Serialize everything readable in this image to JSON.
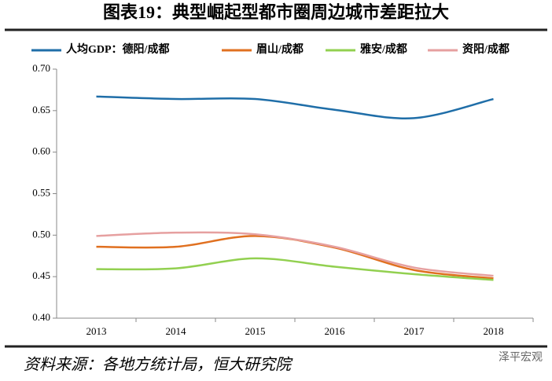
{
  "chart_data": {
    "type": "line",
    "title": "图表19：典型崛起型都市圈周边城市差距拉大",
    "legend_prefix": "人均GDP：",
    "source": "资料来源：各地方统计局，恒大研究院",
    "watermark": "泽平宏观",
    "categories": [
      "2013",
      "2014",
      "2015",
      "2016",
      "2017",
      "2018"
    ],
    "series": [
      {
        "name": "德阳/成都",
        "color": "#1f6ea8",
        "values": [
          0.667,
          0.664,
          0.664,
          0.651,
          0.641,
          0.664
        ]
      },
      {
        "name": "眉山/成都",
        "color": "#e07020",
        "values": [
          0.486,
          0.486,
          0.499,
          0.485,
          0.458,
          0.448
        ]
      },
      {
        "name": "雅安/成都",
        "color": "#92d050",
        "values": [
          0.459,
          0.46,
          0.472,
          0.462,
          0.453,
          0.446
        ]
      },
      {
        "name": "资阳/成都",
        "color": "#e6a0a0",
        "values": [
          0.499,
          0.503,
          0.501,
          0.486,
          0.461,
          0.451
        ]
      }
    ],
    "ylim": [
      0.4,
      0.7
    ],
    "yticks": [
      {
        "value": 0.4,
        "label": "0.40"
      },
      {
        "value": 0.45,
        "label": "0.45"
      },
      {
        "value": 0.5,
        "label": "0.50"
      },
      {
        "value": 0.55,
        "label": "0.55"
      },
      {
        "value": 0.6,
        "label": "0.60"
      },
      {
        "value": 0.65,
        "label": "0.65"
      },
      {
        "value": 0.7,
        "label": "0.70"
      }
    ],
    "grid": false
  }
}
